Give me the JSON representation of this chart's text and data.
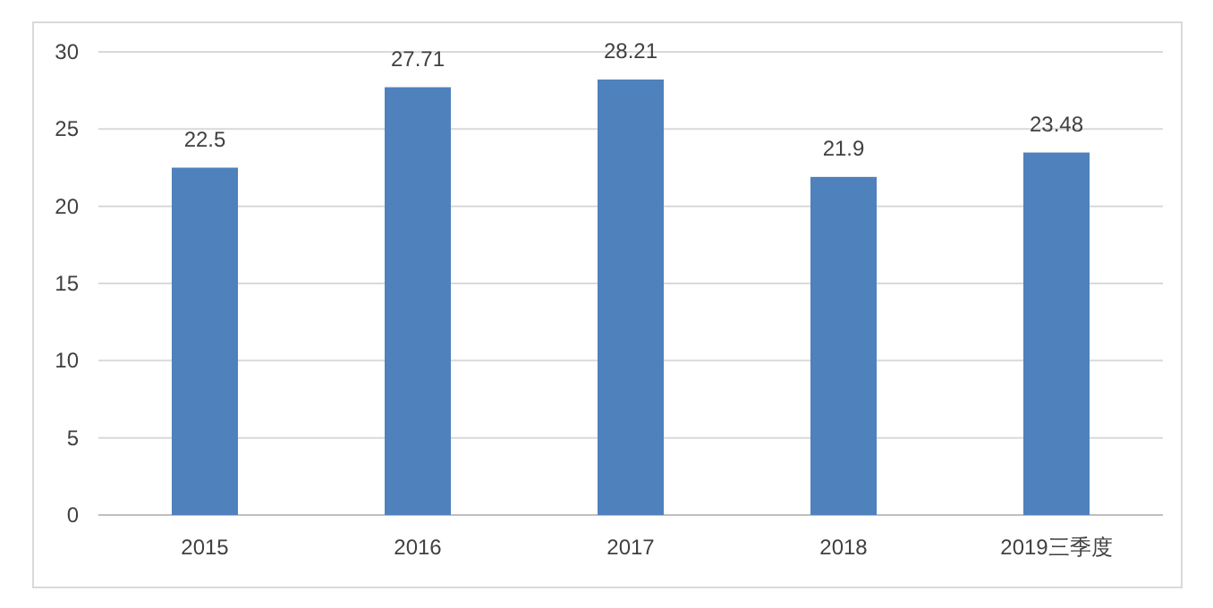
{
  "chart_data": {
    "type": "bar",
    "categories": [
      "2015",
      "2016",
      "2017",
      "2018",
      "2019三季度"
    ],
    "values": [
      22.5,
      27.71,
      28.21,
      21.9,
      23.48
    ],
    "color": "#4f81bd",
    "ylim": [
      0,
      30
    ],
    "yticks": [
      0,
      5,
      10,
      15,
      20,
      25,
      30
    ],
    "grid": "y",
    "data_labels": true
  }
}
